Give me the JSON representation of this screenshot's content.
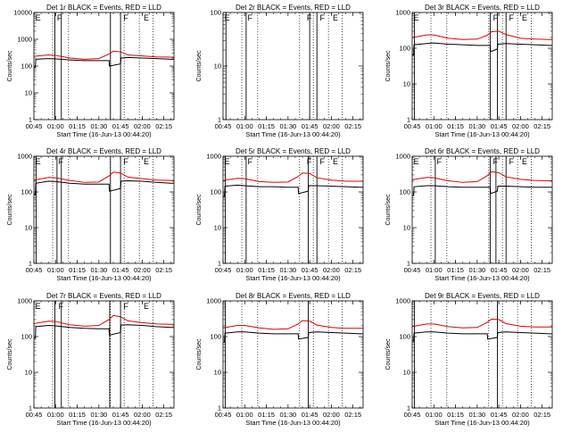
{
  "chart_data": [
    {
      "type": "line",
      "title": "Det 1r BLACK = Events, RED = LLD",
      "xlabel": "Start Time (16-Jun-13 00:44:20)",
      "ylabel": "Counts/sec",
      "yscale": "log",
      "ylim": [
        1,
        10000
      ],
      "xlim_min": [
        45,
        142
      ],
      "x_ticks": [
        "00:45",
        "01:00",
        "01:15",
        "01:30",
        "01:45",
        "02:00",
        "02:15"
      ],
      "y_ticks": [
        "1",
        "10",
        "100",
        "1000",
        "10000"
      ],
      "vlines_solid_min": [
        59.5,
        64,
        98,
        105
      ],
      "vlines_dotted_min": [
        58,
        69,
        98,
        107.5,
        118,
        127.5
      ],
      "markers": [
        {
          "label": "E",
          "x_min": 46
        },
        {
          "label": "F",
          "x_min": 61
        },
        {
          "label": "F",
          "x_min": 107
        },
        {
          "label": "E",
          "x_min": 121
        }
      ],
      "series": [
        {
          "name": "Events",
          "color": "#000000",
          "x_min": [
            45,
            46,
            46.3,
            55,
            60,
            70,
            80,
            90,
            97,
            97.3,
            105,
            105.3,
            110,
            120,
            130,
            140,
            142
          ],
          "values": [
            90,
            90,
            180,
            190,
            185,
            170,
            160,
            160,
            160,
            100,
            120,
            200,
            210,
            200,
            190,
            180,
            180
          ]
        },
        {
          "name": "LLD",
          "color": "#e00000",
          "x_min": [
            45,
            55,
            60,
            70,
            80,
            90,
            97,
            100,
            105,
            110,
            120,
            130,
            140,
            142
          ],
          "values": [
            230,
            260,
            250,
            200,
            180,
            190,
            280,
            360,
            340,
            260,
            240,
            220,
            215,
            215
          ]
        }
      ]
    },
    {
      "type": "line",
      "title": "Det 2r BLACK = Events, RED = LLD",
      "xlabel": "Start Time (16-Jun-13 00:44:20)",
      "ylabel": "Counts/sec",
      "yscale": "log",
      "ylim": [
        1,
        100
      ],
      "xlim_min": [
        45,
        142
      ],
      "x_ticks": [
        "00:45",
        "01:00",
        "01:15",
        "01:30",
        "01:45",
        "02:00",
        "02:15"
      ],
      "y_ticks": [
        "1",
        "10",
        "100"
      ],
      "vlines_solid_min": [
        47,
        61,
        105,
        110
      ],
      "vlines_dotted_min": [
        58,
        69,
        98,
        107.5,
        118,
        127.5
      ],
      "markers": [
        {
          "label": "E",
          "x_min": 46
        },
        {
          "label": "F",
          "x_min": 62
        },
        {
          "label": "F",
          "x_min": 103
        },
        {
          "label": "F",
          "x_min": 112
        },
        {
          "label": "E",
          "x_min": 121
        }
      ],
      "series": []
    },
    {
      "type": "line",
      "title": "Det 3r BLACK = Events, RED = LLD",
      "xlabel": "Start Time (16-Jun-13 00:44:20)",
      "ylabel": "Counts/sec",
      "yscale": "log",
      "ylim": [
        1,
        1000
      ],
      "xlim_min": [
        45,
        142
      ],
      "x_ticks": [
        "00:45",
        "01:00",
        "01:15",
        "01:30",
        "01:45",
        "02:00",
        "02:15"
      ],
      "y_ticks": [
        "1",
        "10",
        "100",
        "1000"
      ],
      "vlines_solid_min": [
        46.5,
        99,
        104,
        110
      ],
      "vlines_dotted_min": [
        58,
        69,
        98,
        107.5,
        118,
        127.5
      ],
      "markers": [
        {
          "label": "E",
          "x_min": 46
        },
        {
          "label": "F",
          "x_min": 101
        },
        {
          "label": "F",
          "x_min": 112
        },
        {
          "label": "E",
          "x_min": 121
        }
      ],
      "series": [
        {
          "name": "Events",
          "color": "#000000",
          "x_min": [
            45,
            46,
            46.3,
            55,
            60,
            70,
            80,
            90,
            97,
            99,
            99.3,
            104,
            104.3,
            110,
            120,
            130,
            140,
            142
          ],
          "values": [
            65,
            65,
            125,
            135,
            140,
            130,
            125,
            120,
            120,
            120,
            80,
            95,
            130,
            135,
            130,
            125,
            120,
            120
          ]
        },
        {
          "name": "LLD",
          "color": "#e00000",
          "x_min": [
            45,
            55,
            60,
            70,
            80,
            90,
            97,
            100,
            105,
            110,
            120,
            130,
            140,
            142
          ],
          "values": [
            200,
            235,
            235,
            190,
            175,
            180,
            230,
            290,
            300,
            240,
            190,
            180,
            175,
            175
          ]
        }
      ]
    },
    {
      "type": "line",
      "title": "Det 4r BLACK = Events, RED = LLD",
      "xlabel": "Start Time (16-Jun-13 00:44:20)",
      "ylabel": "Counts/sec",
      "yscale": "log",
      "ylim": [
        1,
        1000
      ],
      "xlim_min": [
        45,
        142
      ],
      "x_ticks": [
        "00:45",
        "01:00",
        "01:15",
        "01:30",
        "01:45",
        "02:00",
        "02:15"
      ],
      "y_ticks": [
        "1",
        "10",
        "100",
        "1000"
      ],
      "vlines_solid_min": [
        46.5,
        61,
        64,
        98,
        105
      ],
      "vlines_dotted_min": [
        58,
        69,
        98,
        107.5,
        118,
        127.5
      ],
      "markers": [
        {
          "label": "E",
          "x_min": 46
        },
        {
          "label": "F",
          "x_min": 62
        },
        {
          "label": "F",
          "x_min": 107
        },
        {
          "label": "E",
          "x_min": 121
        }
      ],
      "series": [
        {
          "name": "Events",
          "color": "#000000",
          "x_min": [
            45,
            46,
            46.3,
            55,
            60,
            70,
            80,
            90,
            97,
            97.3,
            105,
            105.3,
            110,
            120,
            130,
            140,
            142
          ],
          "values": [
            85,
            85,
            175,
            200,
            195,
            175,
            165,
            165,
            165,
            105,
            125,
            200,
            205,
            200,
            185,
            175,
            175
          ]
        },
        {
          "name": "LLD",
          "color": "#e00000",
          "x_min": [
            45,
            55,
            60,
            70,
            80,
            90,
            97,
            100,
            105,
            110,
            120,
            130,
            140,
            142
          ],
          "values": [
            215,
            255,
            250,
            210,
            185,
            190,
            280,
            360,
            340,
            260,
            235,
            215,
            210,
            210
          ]
        }
      ]
    },
    {
      "type": "line",
      "title": "Det 5r BLACK = Events, RED = LLD",
      "xlabel": "Start Time (16-Jun-13 00:44:20)",
      "ylabel": "Counts/sec",
      "yscale": "log",
      "ylim": [
        1,
        1000
      ],
      "xlim_min": [
        45,
        142
      ],
      "x_ticks": [
        "00:45",
        "01:00",
        "01:15",
        "01:30",
        "01:45",
        "02:00",
        "02:15"
      ],
      "y_ticks": [
        "1",
        "10",
        "100",
        "1000"
      ],
      "vlines_solid_min": [
        46.5,
        61,
        104,
        110
      ],
      "vlines_dotted_min": [
        58,
        69,
        98,
        107.5,
        118,
        127.5
      ],
      "markers": [
        {
          "label": "E",
          "x_min": 46
        },
        {
          "label": "F",
          "x_min": 62
        },
        {
          "label": "F",
          "x_min": 103
        },
        {
          "label": "F",
          "x_min": 112
        },
        {
          "label": "E",
          "x_min": 121
        }
      ],
      "series": [
        {
          "name": "Events",
          "color": "#000000",
          "x_min": [
            45,
            46,
            46.3,
            55,
            60,
            70,
            80,
            90,
            97,
            97.3,
            104,
            104.3,
            110,
            120,
            130,
            140,
            142
          ],
          "values": [
            75,
            75,
            145,
            155,
            150,
            140,
            140,
            135,
            135,
            90,
            105,
            150,
            150,
            145,
            140,
            135,
            135
          ]
        },
        {
          "name": "LLD",
          "color": "#e00000",
          "x_min": [
            45,
            55,
            60,
            70,
            80,
            90,
            97,
            100,
            105,
            110,
            120,
            130,
            140,
            142
          ],
          "values": [
            210,
            240,
            235,
            195,
            185,
            190,
            270,
            340,
            330,
            250,
            215,
            200,
            200,
            200
          ]
        }
      ]
    },
    {
      "type": "line",
      "title": "Det 6r BLACK = Events, RED = LLD",
      "xlabel": "Start Time (16-Jun-13 00:44:20)",
      "ylabel": "Counts/sec",
      "yscale": "log",
      "ylim": [
        1,
        1000
      ],
      "xlim_min": [
        45,
        142
      ],
      "x_ticks": [
        "00:45",
        "01:00",
        "01:15",
        "01:30",
        "01:45",
        "02:00",
        "02:15"
      ],
      "y_ticks": [
        "1",
        "10",
        "100",
        "1000"
      ],
      "vlines_solid_min": [
        61,
        99,
        103,
        110
      ],
      "vlines_dotted_min": [
        58,
        69,
        98,
        107.5,
        118,
        127.5
      ],
      "markers": [
        {
          "label": "E",
          "x_min": 46
        },
        {
          "label": "F",
          "x_min": 62
        },
        {
          "label": "F",
          "x_min": 101
        },
        {
          "label": "F",
          "x_min": 112
        },
        {
          "label": "E",
          "x_min": 121
        }
      ],
      "series": [
        {
          "name": "Events",
          "color": "#000000",
          "x_min": [
            45,
            46,
            46.3,
            55,
            60,
            70,
            80,
            90,
            97,
            99,
            99.3,
            104,
            104.3,
            110,
            120,
            130,
            140,
            142
          ],
          "values": [
            80,
            80,
            140,
            150,
            150,
            140,
            135,
            135,
            135,
            135,
            90,
            105,
            145,
            145,
            140,
            135,
            135,
            135
          ]
        },
        {
          "name": "LLD",
          "color": "#e00000",
          "x_min": [
            45,
            55,
            60,
            70,
            80,
            90,
            97,
            100,
            105,
            110,
            120,
            130,
            140,
            142
          ],
          "values": [
            220,
            255,
            250,
            205,
            185,
            195,
            285,
            370,
            345,
            265,
            225,
            210,
            205,
            205
          ]
        }
      ]
    },
    {
      "type": "line",
      "title": "Det 7r BLACK = Events, RED = LLD",
      "xlabel": "Start Time (16-Jun-13 00:44:20)",
      "ylabel": "Counts/sec",
      "yscale": "log",
      "ylim": [
        1,
        1000
      ],
      "xlim_min": [
        45,
        142
      ],
      "x_ticks": [
        "00:45",
        "01:00",
        "01:15",
        "01:30",
        "01:45",
        "02:00",
        "02:15"
      ],
      "y_ticks": [
        "1",
        "10",
        "100",
        "1000"
      ],
      "vlines_solid_min": [
        59.5,
        64,
        97.5,
        105
      ],
      "vlines_dotted_min": [
        58,
        69,
        98,
        107.5,
        118,
        127.5
      ],
      "markers": [
        {
          "label": "E",
          "x_min": 46
        },
        {
          "label": "F",
          "x_min": 62
        },
        {
          "label": "F",
          "x_min": 107
        },
        {
          "label": "E",
          "x_min": 121
        }
      ],
      "series": [
        {
          "name": "Events",
          "color": "#000000",
          "x_min": [
            45,
            46,
            46.3,
            55,
            60,
            70,
            80,
            90,
            97,
            97.3,
            105,
            105.3,
            110,
            120,
            130,
            140,
            142
          ],
          "values": [
            90,
            90,
            190,
            205,
            200,
            180,
            170,
            165,
            165,
            110,
            130,
            210,
            215,
            205,
            190,
            180,
            180
          ]
        },
        {
          "name": "LLD",
          "color": "#e00000",
          "x_min": [
            45,
            55,
            60,
            70,
            80,
            90,
            97,
            100,
            105,
            110,
            120,
            130,
            140,
            142
          ],
          "values": [
            230,
            270,
            265,
            215,
            195,
            205,
            300,
            390,
            360,
            275,
            245,
            225,
            220,
            220
          ]
        }
      ]
    },
    {
      "type": "line",
      "title": "Det 8r BLACK = Events, RED = LLD",
      "xlabel": "Start Time (16-Jun-13 00:44:20)",
      "ylabel": "Counts/sec",
      "yscale": "log",
      "ylim": [
        1,
        1000
      ],
      "xlim_min": [
        45,
        142
      ],
      "x_ticks": [
        "00:45",
        "01:00",
        "01:15",
        "01:30",
        "01:45",
        "02:00",
        "02:15"
      ],
      "y_ticks": [
        "1",
        "10",
        "100",
        "1000"
      ],
      "vlines_solid_min": [
        46.5,
        104
      ],
      "vlines_dotted_min": [
        58,
        69,
        98,
        107.5,
        118,
        127.5
      ],
      "markers": [],
      "series": [
        {
          "name": "Events",
          "color": "#000000",
          "x_min": [
            45,
            46,
            46.3,
            55,
            60,
            70,
            80,
            90,
            97,
            97.3,
            104,
            104.3,
            110,
            120,
            130,
            140,
            142
          ],
          "values": [
            70,
            70,
            125,
            135,
            135,
            125,
            120,
            120,
            120,
            85,
            95,
            130,
            135,
            130,
            125,
            120,
            120
          ]
        },
        {
          "name": "LLD",
          "color": "#e00000",
          "x_min": [
            45,
            55,
            60,
            70,
            80,
            90,
            97,
            100,
            105,
            110,
            120,
            130,
            140,
            142
          ],
          "values": [
            175,
            205,
            205,
            175,
            160,
            165,
            225,
            280,
            270,
            210,
            180,
            170,
            170,
            170
          ]
        }
      ]
    },
    {
      "type": "line",
      "title": "Det 9r BLACK = Events, RED = LLD",
      "xlabel": "Start Time (16-Jun-13 00:44:20)",
      "ylabel": "Counts/sec",
      "yscale": "log",
      "ylim": [
        1,
        1000
      ],
      "xlim_min": [
        45,
        142
      ],
      "x_ticks": [
        "00:45",
        "01:00",
        "01:15",
        "01:30",
        "01:45",
        "02:00",
        "02:15"
      ],
      "y_ticks": [
        "1",
        "10",
        "100",
        "1000"
      ],
      "vlines_solid_min": [
        46.5,
        104
      ],
      "vlines_dotted_min": [
        58,
        69,
        98,
        107.5,
        118,
        127.5
      ],
      "markers": [],
      "series": [
        {
          "name": "Events",
          "color": "#000000",
          "x_min": [
            45,
            46,
            46.3,
            55,
            60,
            70,
            80,
            90,
            97,
            97.3,
            104,
            104.3,
            110,
            120,
            130,
            140,
            142
          ],
          "values": [
            75,
            75,
            125,
            135,
            135,
            125,
            120,
            120,
            120,
            85,
            95,
            130,
            135,
            130,
            125,
            120,
            120
          ]
        },
        {
          "name": "LLD",
          "color": "#e00000",
          "x_min": [
            45,
            55,
            60,
            70,
            80,
            90,
            97,
            100,
            105,
            110,
            120,
            130,
            140,
            142
          ],
          "values": [
            190,
            225,
            225,
            190,
            175,
            180,
            250,
            310,
            300,
            230,
            195,
            185,
            185,
            185
          ]
        }
      ]
    }
  ]
}
